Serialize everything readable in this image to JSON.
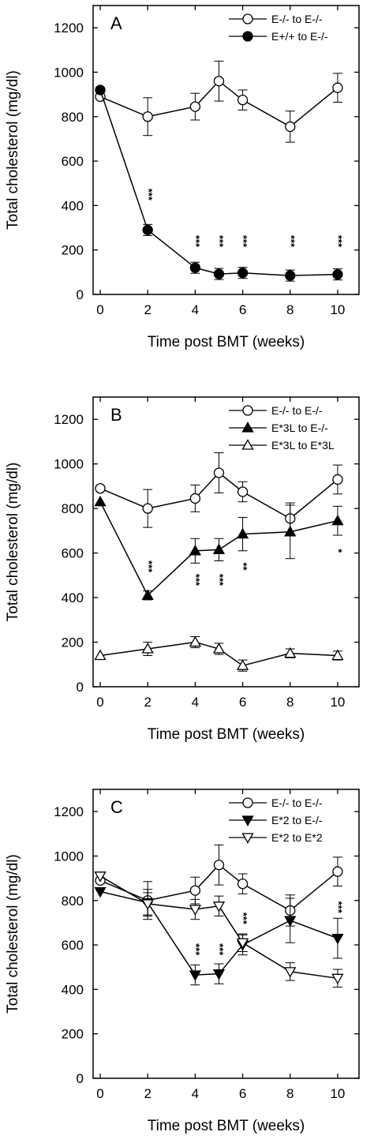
{
  "chart_data": [
    {
      "type": "line",
      "panel_label": "A",
      "xlabel": "Time post BMT (weeks)",
      "ylabel": "Total cholesterol (mg/dl)",
      "xlim": [
        -0.3,
        10.9
      ],
      "ylim": [
        0,
        1300
      ],
      "xticks": [
        0,
        2,
        4,
        6,
        8,
        10
      ],
      "yticks": [
        0,
        200,
        400,
        600,
        800,
        1000,
        1200
      ],
      "x_tick_labels": [
        "0",
        "2",
        "4",
        "6",
        "8",
        "10"
      ],
      "y_tick_labels": [
        "0",
        "200",
        "400",
        "600",
        "800",
        "1000",
        "1200"
      ],
      "legend_position": "top-right",
      "series": [
        {
          "name": "E-/- to E-/-",
          "marker": "circle-open",
          "x": [
            0,
            2,
            4,
            5,
            6,
            8,
            10
          ],
          "y": [
            890,
            800,
            845,
            960,
            875,
            755,
            930
          ],
          "err": [
            0,
            85,
            60,
            90,
            45,
            70,
            65
          ]
        },
        {
          "name": "E+/+ to E-/-",
          "marker": "circle-filled",
          "x": [
            0,
            2,
            4,
            5,
            6,
            8,
            10
          ],
          "y": [
            920,
            290,
            120,
            92,
            97,
            85,
            90
          ],
          "err": [
            0,
            25,
            25,
            25,
            25,
            25,
            25
          ]
        }
      ],
      "significance": [
        {
          "x": 2,
          "y": 450,
          "label": "***"
        },
        {
          "x": 4,
          "y": 240,
          "label": "***"
        },
        {
          "x": 5,
          "y": 240,
          "label": "***"
        },
        {
          "x": 6,
          "y": 240,
          "label": "***"
        },
        {
          "x": 8,
          "y": 240,
          "label": "***"
        },
        {
          "x": 10,
          "y": 240,
          "label": "***"
        }
      ]
    },
    {
      "type": "line",
      "panel_label": "B",
      "xlabel": "Time post BMT (weeks)",
      "ylabel": "Total cholesterol (mg/dl)",
      "xlim": [
        -0.3,
        10.9
      ],
      "ylim": [
        0,
        1300
      ],
      "xticks": [
        0,
        2,
        4,
        6,
        8,
        10
      ],
      "yticks": [
        0,
        200,
        400,
        600,
        800,
        1000,
        1200
      ],
      "x_tick_labels": [
        "0",
        "2",
        "4",
        "6",
        "8",
        "10"
      ],
      "y_tick_labels": [
        "0",
        "200",
        "400",
        "600",
        "800",
        "1000",
        "1200"
      ],
      "legend_position": "top-right",
      "series": [
        {
          "name": "E-/- to E-/-",
          "marker": "circle-open",
          "x": [
            0,
            2,
            4,
            5,
            6,
            8,
            10
          ],
          "y": [
            890,
            800,
            845,
            960,
            875,
            755,
            930
          ],
          "err": [
            0,
            85,
            60,
            90,
            45,
            70,
            65
          ]
        },
        {
          "name": "E*3L to E-/-",
          "marker": "triangle-up-filled",
          "x": [
            0,
            2,
            4,
            5,
            6,
            8,
            10
          ],
          "y": [
            830,
            410,
            610,
            615,
            685,
            695,
            745
          ],
          "err": [
            0,
            20,
            55,
            50,
            75,
            120,
            65
          ]
        },
        {
          "name": "E*3L to E*3L",
          "marker": "triangle-up-open",
          "x": [
            0,
            2,
            4,
            5,
            6,
            8,
            10
          ],
          "y": [
            140,
            170,
            200,
            170,
            95,
            150,
            140
          ],
          "err": [
            0,
            30,
            25,
            25,
            25,
            20,
            20
          ]
        }
      ],
      "significance": [
        {
          "x": 2,
          "y": 540,
          "label": "***"
        },
        {
          "x": 4,
          "y": 480,
          "label": "***"
        },
        {
          "x": 5,
          "y": 480,
          "label": "***"
        },
        {
          "x": 6,
          "y": 540,
          "label": "**"
        },
        {
          "x": 10,
          "y": 610,
          "label": "*"
        }
      ]
    },
    {
      "type": "line",
      "panel_label": "C",
      "xlabel": "Time post BMT (weeks)",
      "ylabel": "Total cholesterol (mg/dl)",
      "xlim": [
        -0.3,
        10.9
      ],
      "ylim": [
        0,
        1300
      ],
      "xticks": [
        0,
        2,
        4,
        6,
        8,
        10
      ],
      "yticks": [
        0,
        200,
        400,
        600,
        800,
        1000,
        1200
      ],
      "x_tick_labels": [
        "0",
        "2",
        "4",
        "6",
        "8",
        "10"
      ],
      "y_tick_labels": [
        "0",
        "200",
        "400",
        "600",
        "800",
        "1000",
        "1200"
      ],
      "legend_position": "top-right",
      "series": [
        {
          "name": "E-/- to E-/-",
          "marker": "circle-open",
          "x": [
            0,
            2,
            4,
            5,
            6,
            8,
            10
          ],
          "y": [
            890,
            800,
            845,
            960,
            875,
            755,
            930
          ],
          "err": [
            0,
            85,
            60,
            90,
            45,
            70,
            65
          ]
        },
        {
          "name": "E*2 to E-/-",
          "marker": "triangle-down-filled",
          "x": [
            0,
            2,
            4,
            5,
            6,
            8,
            10
          ],
          "y": [
            840,
            790,
            465,
            470,
            600,
            710,
            630
          ],
          "err": [
            0,
            60,
            45,
            45,
            45,
            100,
            90
          ]
        },
        {
          "name": "E*2 to E*2",
          "marker": "triangle-down-open",
          "x": [
            0,
            2,
            4,
            5,
            6,
            8,
            10
          ],
          "y": [
            910,
            785,
            760,
            775,
            610,
            480,
            450
          ],
          "err": [
            0,
            50,
            45,
            45,
            40,
            40,
            40
          ]
        }
      ],
      "significance": [
        {
          "x": 4,
          "y": 580,
          "label": "***"
        },
        {
          "x": 5,
          "y": 580,
          "label": "***"
        },
        {
          "x": 6,
          "y": 720,
          "label": "***"
        },
        {
          "x": 10,
          "y": 770,
          "label": "***"
        }
      ]
    }
  ]
}
